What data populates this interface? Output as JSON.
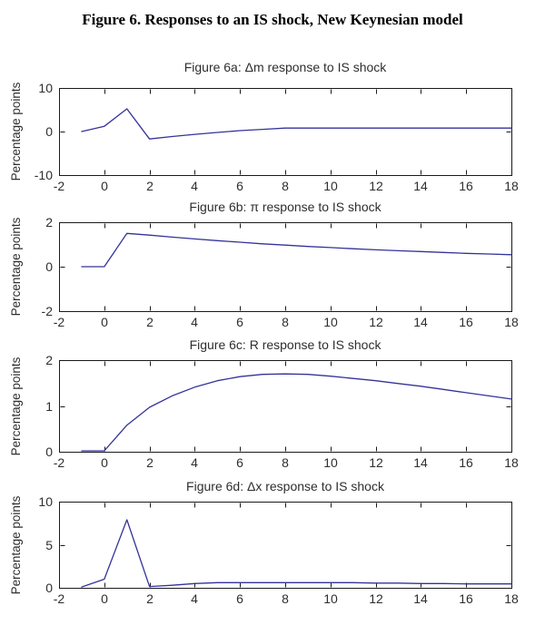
{
  "page_title": "Figure 6. Responses to an IS shock, New Keynesian model",
  "chart_data": [
    {
      "id": "6a",
      "type": "line",
      "title": "Figure 6a: Δm response to IS shock",
      "ylabel": "Percentage points",
      "xlabel": "",
      "xlim": [
        -2,
        18
      ],
      "ylim": [
        -10,
        10
      ],
      "xticks": [
        -2,
        0,
        2,
        4,
        6,
        8,
        10,
        12,
        14,
        16,
        18
      ],
      "yticks": [
        -10,
        0,
        10
      ],
      "grid": false,
      "legend": "none",
      "line_color": "#333399",
      "axis_color": "#1a1a1a",
      "x": [
        -1,
        0,
        1,
        2,
        3,
        4,
        5,
        6,
        7,
        8,
        9,
        10,
        11,
        12,
        13,
        14,
        15,
        16,
        17,
        18
      ],
      "values": [
        0,
        1.2,
        5.2,
        -1.7,
        -1.15,
        -0.65,
        -0.2,
        0.2,
        0.5,
        0.8,
        0.8,
        0.8,
        0.8,
        0.8,
        0.8,
        0.8,
        0.8,
        0.8,
        0.8,
        0.8
      ]
    },
    {
      "id": "6b",
      "type": "line",
      "title": "Figure 6b: π response to IS shock",
      "ylabel": "Percentage points",
      "xlabel": "",
      "xlim": [
        -2,
        18
      ],
      "ylim": [
        -2,
        2
      ],
      "xticks": [
        -2,
        0,
        2,
        4,
        6,
        8,
        10,
        12,
        14,
        16,
        18
      ],
      "yticks": [
        -2,
        0,
        2
      ],
      "grid": false,
      "legend": "none",
      "line_color": "#333399",
      "axis_color": "#1a1a1a",
      "x": [
        -1,
        0,
        1,
        2,
        3,
        4,
        5,
        6,
        7,
        8,
        9,
        10,
        11,
        12,
        13,
        14,
        15,
        16,
        17,
        18
      ],
      "values": [
        0,
        0,
        1.5,
        1.42,
        1.33,
        1.25,
        1.17,
        1.1,
        1.03,
        0.97,
        0.91,
        0.86,
        0.81,
        0.76,
        0.72,
        0.68,
        0.64,
        0.6,
        0.57,
        0.54
      ]
    },
    {
      "id": "6c",
      "type": "line",
      "title": "Figure 6c: R response to IS shock",
      "ylabel": "Percentage points",
      "xlabel": "",
      "xlim": [
        -2,
        18
      ],
      "ylim": [
        0,
        2
      ],
      "xticks": [
        -2,
        0,
        2,
        4,
        6,
        8,
        10,
        12,
        14,
        16,
        18
      ],
      "yticks": [
        0,
        1,
        2
      ],
      "grid": false,
      "legend": "none",
      "line_color": "#333399",
      "axis_color": "#1a1a1a",
      "x": [
        -1,
        0,
        1,
        2,
        3,
        4,
        5,
        6,
        7,
        8,
        9,
        10,
        11,
        12,
        13,
        14,
        15,
        16,
        17,
        18
      ],
      "values": [
        0.02,
        0.02,
        0.58,
        0.97,
        1.22,
        1.41,
        1.55,
        1.64,
        1.69,
        1.7,
        1.69,
        1.65,
        1.6,
        1.55,
        1.49,
        1.43,
        1.36,
        1.29,
        1.22,
        1.15
      ]
    },
    {
      "id": "6d",
      "type": "line",
      "title": "Figure 6d: Δx response to IS shock",
      "ylabel": "Percentage points",
      "xlabel": "",
      "xlim": [
        -2,
        18
      ],
      "ylim": [
        0,
        10
      ],
      "xticks": [
        -2,
        0,
        2,
        4,
        6,
        8,
        10,
        12,
        14,
        16,
        18
      ],
      "yticks": [
        0,
        5,
        10
      ],
      "grid": false,
      "legend": "none",
      "line_color": "#333399",
      "axis_color": "#1a1a1a",
      "x": [
        -1,
        0,
        1,
        2,
        3,
        4,
        5,
        6,
        7,
        8,
        9,
        10,
        11,
        12,
        13,
        14,
        15,
        16,
        17,
        18
      ],
      "values": [
        0.1,
        1.0,
        7.9,
        0.15,
        0.3,
        0.5,
        0.6,
        0.6,
        0.6,
        0.6,
        0.6,
        0.6,
        0.6,
        0.55,
        0.55,
        0.5,
        0.5,
        0.45,
        0.45,
        0.45
      ]
    }
  ]
}
